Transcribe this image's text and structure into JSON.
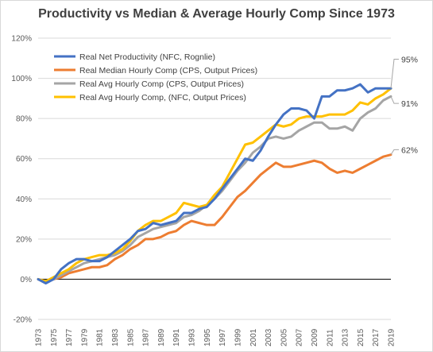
{
  "chart_data": {
    "type": "line",
    "title": "Productivity vs Median & Average Hourly Comp Since 1973",
    "xlabel": "",
    "ylabel": "",
    "ylim": [
      -20,
      120
    ],
    "yticks": [
      -20,
      0,
      20,
      40,
      60,
      80,
      100,
      120
    ],
    "ytick_labels": [
      "-20%",
      "0%",
      "20%",
      "40%",
      "60%",
      "80%",
      "100%",
      "120%"
    ],
    "xlim": [
      1973,
      2019
    ],
    "xtick_labels": [
      "1973",
      "1975",
      "1977",
      "1979",
      "1981",
      "1983",
      "1985",
      "1987",
      "1989",
      "1991",
      "1993",
      "1995",
      "1997",
      "1999",
      "2001",
      "2003",
      "2005",
      "2007",
      "2009",
      "2011",
      "2013",
      "2015",
      "2017",
      "2019"
    ],
    "grid": "horizontal",
    "legend_position": "top-left",
    "x": [
      1973,
      1974,
      1975,
      1976,
      1977,
      1978,
      1979,
      1980,
      1981,
      1982,
      1983,
      1984,
      1985,
      1986,
      1987,
      1988,
      1989,
      1990,
      1991,
      1992,
      1993,
      1994,
      1995,
      1996,
      1997,
      1998,
      1999,
      2000,
      2001,
      2002,
      2003,
      2004,
      2005,
      2006,
      2007,
      2008,
      2009,
      2010,
      2011,
      2012,
      2013,
      2014,
      2015,
      2016,
      2017,
      2018,
      2019
    ],
    "series": [
      {
        "name": "Real Net Productivity (NFC, Rognlie)",
        "color": "#4472c4",
        "values": [
          0,
          -2,
          0,
          5,
          8,
          10,
          10,
          9,
          9,
          11,
          14,
          17,
          20,
          24,
          25,
          28,
          27,
          28,
          29,
          33,
          33,
          35,
          36,
          40,
          45,
          50,
          55,
          60,
          59,
          64,
          71,
          77,
          82,
          85,
          85,
          84,
          80,
          91,
          91,
          94,
          94,
          95,
          97,
          93,
          95,
          95,
          95
        ]
      },
      {
        "name": "Real Median Hourly Comp (CPS, Output Prices)",
        "color": "#ed7d31",
        "values": [
          0,
          -1,
          0,
          1,
          3,
          4,
          5,
          6,
          6,
          7,
          10,
          12,
          15,
          17,
          20,
          20,
          21,
          23,
          24,
          27,
          29,
          28,
          27,
          27,
          31,
          36,
          41,
          44,
          48,
          52,
          55,
          58,
          56,
          56,
          57,
          58,
          59,
          58,
          55,
          53,
          54,
          53,
          55,
          57,
          59,
          61,
          62
        ]
      },
      {
        "name": "Real Avg Hourly Comp (CPS, Output Prices)",
        "color": "#a5a5a5",
        "values": [
          0,
          -1,
          0,
          2,
          4,
          6,
          8,
          9,
          10,
          11,
          12,
          14,
          17,
          21,
          23,
          25,
          26,
          27,
          28,
          31,
          32,
          34,
          37,
          40,
          44,
          49,
          54,
          58,
          63,
          66,
          70,
          71,
          70,
          71,
          74,
          76,
          78,
          78,
          75,
          75,
          76,
          74,
          80,
          83,
          85,
          89,
          91
        ]
      },
      {
        "name": "Real Avg Hourly Comp, (NFC, Output Prices)",
        "color": "#ffc000",
        "values": [
          0,
          -1,
          1,
          3,
          5,
          8,
          10,
          11,
          12,
          12,
          13,
          15,
          19,
          24,
          27,
          29,
          29,
          31,
          33,
          38,
          37,
          36,
          37,
          42,
          46,
          53,
          60,
          67,
          68,
          71,
          74,
          77,
          76,
          77,
          80,
          81,
          81,
          81,
          82,
          82,
          82,
          84,
          88,
          87,
          90,
          92,
          95
        ]
      }
    ],
    "end_labels": [
      "95%",
      "62%",
      "91%"
    ]
  }
}
